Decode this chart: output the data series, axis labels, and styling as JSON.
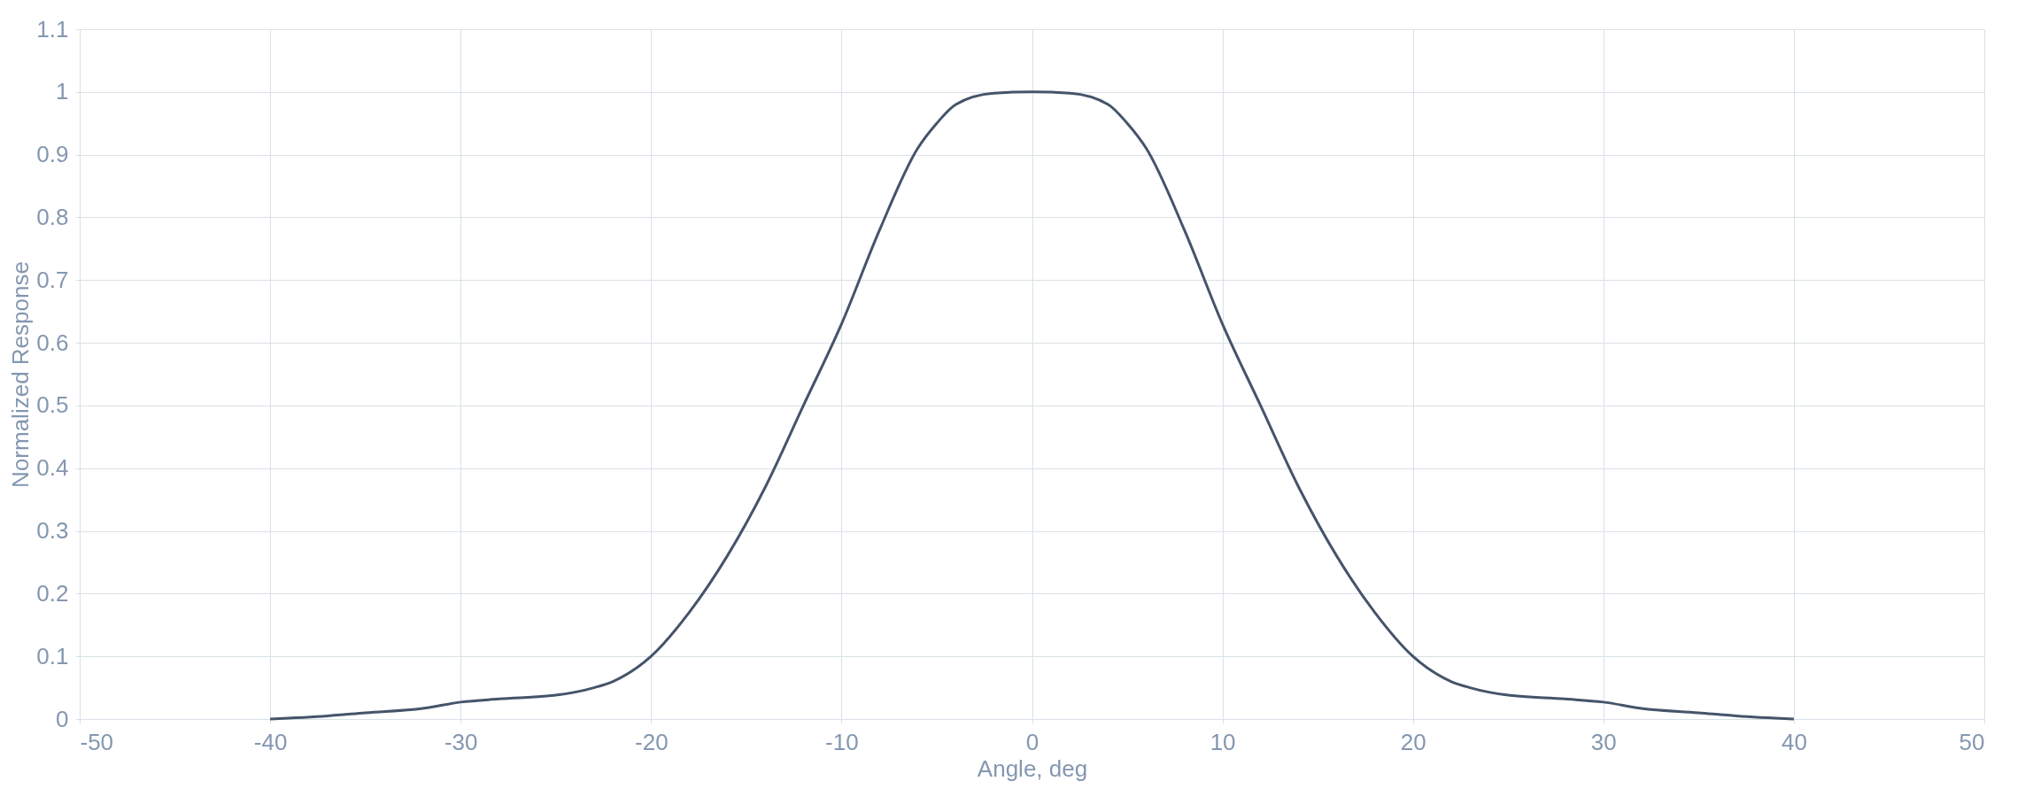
{
  "chart_data": {
    "type": "line",
    "xlabel": "Angle, deg",
    "ylabel": "Normalized Response",
    "x": [
      -40,
      -37,
      -35,
      -32,
      -30,
      -28,
      -25,
      -23,
      -22,
      -20,
      -18,
      -16,
      -14,
      -12,
      -10,
      -8,
      -6,
      -5,
      -4,
      -2,
      0,
      2,
      4,
      5,
      6,
      8,
      10,
      12,
      14,
      16,
      18,
      20,
      22,
      23,
      25,
      28,
      30,
      32,
      35,
      37,
      40
    ],
    "series": [
      {
        "color": "#44546a",
        "values": [
          0,
          0.005,
          0.01,
          0.017,
          0.027,
          0.032,
          0.038,
          0.05,
          0.06,
          0.1,
          0.17,
          0.26,
          0.37,
          0.5,
          0.63,
          0.78,
          0.91,
          0.95,
          0.98,
          0.998,
          1,
          0.998,
          0.98,
          0.95,
          0.91,
          0.78,
          0.63,
          0.5,
          0.37,
          0.26,
          0.17,
          0.1,
          0.06,
          0.05,
          0.038,
          0.032,
          0.027,
          0.017,
          0.01,
          0.005,
          0
        ]
      }
    ],
    "xlim": [
      -50,
      50
    ],
    "xticks": [
      -50,
      -40,
      -30,
      -20,
      -10,
      0,
      10,
      20,
      30,
      40,
      50
    ],
    "ylim": [
      0,
      1.1
    ],
    "yticks": [
      0,
      0.1,
      0.2,
      0.3,
      0.4,
      0.5,
      0.6,
      0.7,
      0.8,
      0.9,
      1,
      1.1
    ],
    "grid": true,
    "marker": "none",
    "line_style": "solid"
  }
}
